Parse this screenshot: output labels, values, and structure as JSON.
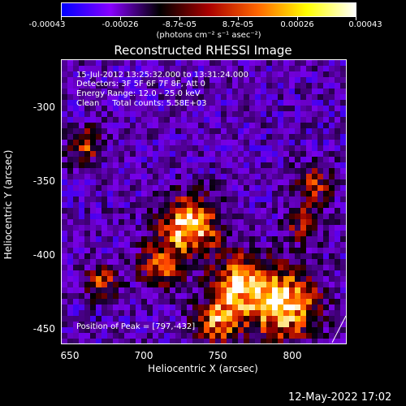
{
  "colorbar": {
    "ticks": [
      "-0.00043",
      "-0.00026",
      "-8.7e-05",
      "8.7e-05",
      "0.00026",
      "0.00043"
    ],
    "units": "(photons cm⁻² s⁻¹ asec⁻²)",
    "colors": [
      "#0000ff",
      "#8800ff",
      "#000000",
      "#aa0000",
      "#ff6600",
      "#ffff00",
      "#ffffff"
    ]
  },
  "title": "Reconstructed RHESSI Image",
  "info": {
    "time_range": "15-Jul-2012 13:25:32.000 to 13:31:24.000",
    "detectors": "Detectors: 3F 5F 6F 7F 8F, Att 0",
    "energy": "Energy Range: 12.0 - 25.0 keV",
    "method": "Clean     Total counts: 5.58E+03",
    "peak": "Position of Peak = [797,-432]"
  },
  "axes": {
    "xlabel": "Heliocentric X (arcsec)",
    "ylabel": "Heliocentric Y (arcsec)",
    "xticks": [
      "650",
      "700",
      "750",
      "800"
    ],
    "yticks": [
      "-300",
      "-350",
      "-400",
      "-450"
    ]
  },
  "footer": {
    "date": "12-May-2022 17:02"
  }
}
